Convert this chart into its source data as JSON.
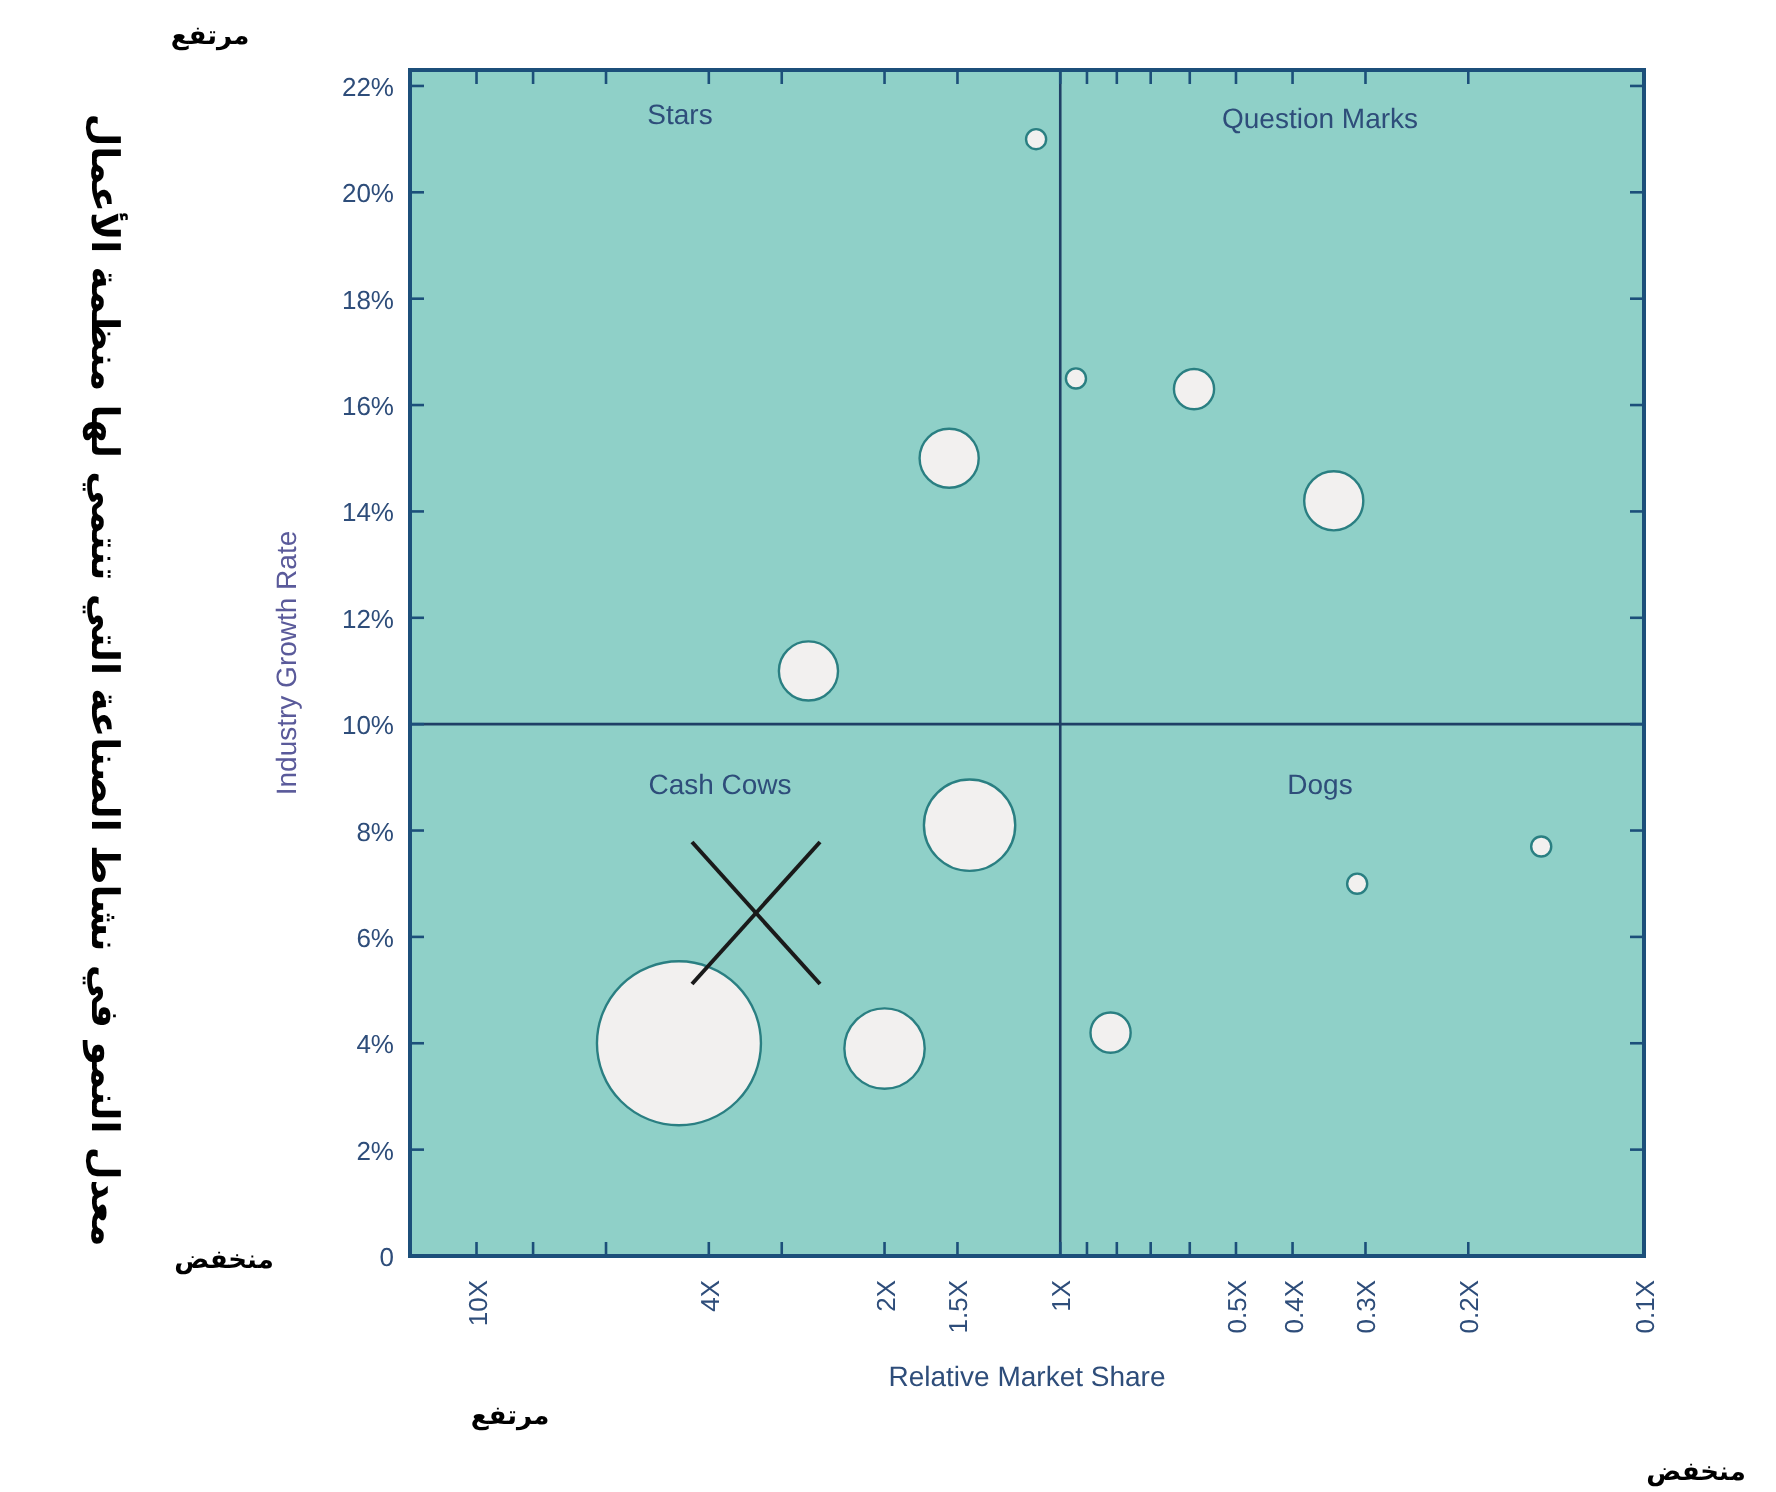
{
  "chart_data": {
    "type": "bubble",
    "xlabel": "Relative Market Share",
    "ylabel": "Industry Growth Rate",
    "xlim": [
      13,
      0.1
    ],
    "log": "x",
    "xticks": [
      {
        "value": 10,
        "label": "10X"
      },
      {
        "value": 8,
        "label": null
      },
      {
        "value": 6,
        "label": null
      },
      {
        "value": 4,
        "label": "4X"
      },
      {
        "value": 3,
        "label": null
      },
      {
        "value": 2,
        "label": "2X"
      },
      {
        "value": 1.5,
        "label": "1.5X"
      },
      {
        "value": 1,
        "label": "1X"
      },
      {
        "value": 0.9,
        "label": null
      },
      {
        "value": 0.8,
        "label": null
      },
      {
        "value": 0.7,
        "label": null
      },
      {
        "value": 0.6,
        "label": null
      },
      {
        "value": 0.5,
        "label": "0.5X"
      },
      {
        "value": 0.4,
        "label": "0.4X"
      },
      {
        "value": 0.3,
        "label": "0.3X"
      },
      {
        "value": 0.2,
        "label": "0.2X"
      },
      {
        "value": 0.1,
        "label": "0.1X"
      }
    ],
    "ylim": [
      0,
      22.3
    ],
    "yticks": [
      {
        "value": 0,
        "label": "0"
      },
      {
        "value": 2,
        "label": "2%"
      },
      {
        "value": 4,
        "label": "4%"
      },
      {
        "value": 6,
        "label": "6%"
      },
      {
        "value": 8,
        "label": "8%"
      },
      {
        "value": 10,
        "label": "10%"
      },
      {
        "value": 12,
        "label": "12%"
      },
      {
        "value": 14,
        "label": "14%"
      },
      {
        "value": 16,
        "label": "16%"
      },
      {
        "value": 18,
        "label": "18%"
      },
      {
        "value": 20,
        "label": "20%"
      },
      {
        "value": 22,
        "label": "22%"
      }
    ],
    "series": [
      {
        "color": "#f2f0ef",
        "x": [
          1.1,
          0.94,
          0.59,
          0.34,
          1.55,
          2.7,
          4.5,
          2.0,
          1.43,
          0.82,
          0.31,
          0.15
        ],
        "values": [
          21.0,
          16.5,
          16.3,
          14.2,
          15.0,
          11.0,
          4.0,
          3.9,
          8.1,
          4.2,
          7.0,
          7.7
        ],
        "sizes": [
          0.015,
          0.015,
          0.06,
          0.13,
          0.13,
          0.13,
          1,
          0.24,
          0.31,
          0.06,
          0.015,
          0.015
        ]
      }
    ],
    "ref_lines": [
      {
        "axis": "x",
        "value": 1,
        "color": "#1f3f66"
      },
      {
        "axis": "y",
        "value": 10,
        "color": "#1f3f66"
      }
    ],
    "annotations": [
      "Stars",
      "Question Marks",
      "Cash Cows",
      "Dogs",
      "مرتفع",
      "منخفض",
      "مرتفع",
      "منخفض",
      "معدل النمو في نشاط الصناعة التي تنتمي لها منظمة الأعمال"
    ]
  }
}
